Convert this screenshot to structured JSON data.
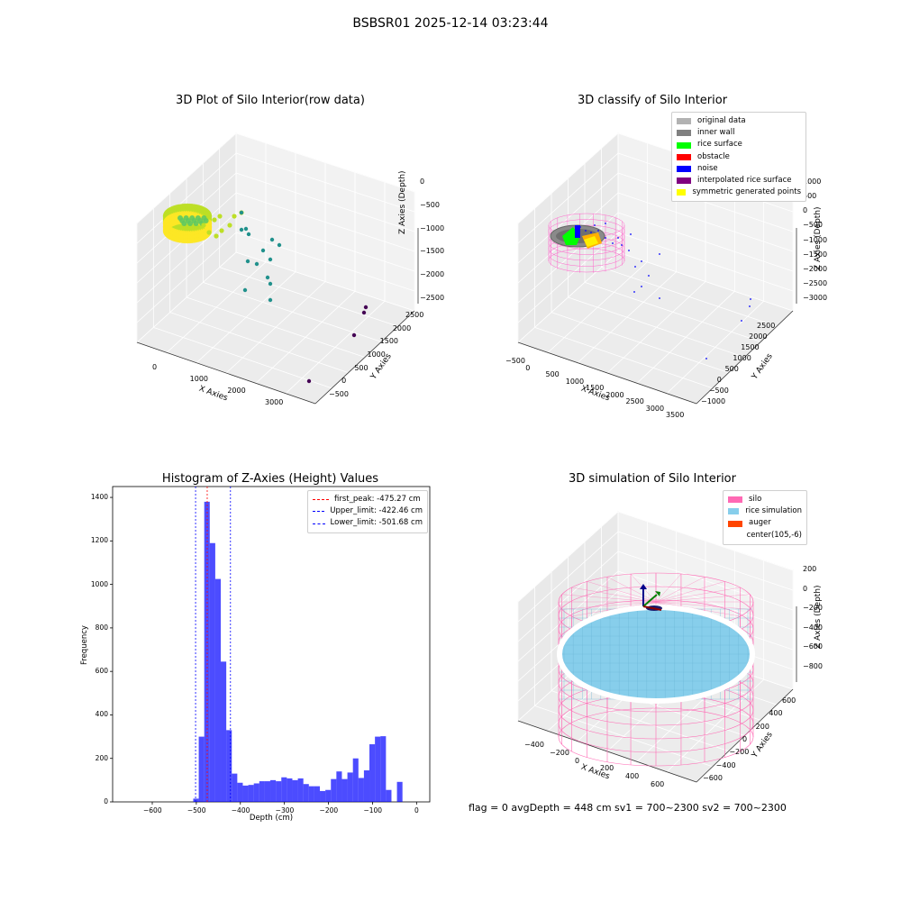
{
  "suptitle": "BSBSR01 2025-12-14 03:23:44",
  "status_text": "flag = 0     avgDepth = 448 cm  sv1 = 700~2300  sv2 = 700~2300",
  "chart_data": [
    {
      "type": "scatter",
      "projection": "3d",
      "title": "3D Plot of Silo Interior(row data)",
      "xlabel": "X Axies",
      "ylabel": "Y Axies",
      "zlabel": "Z Axies (Depth)",
      "x_ticks": [
        "0",
        "1000",
        "2000",
        "3000"
      ],
      "y_ticks": [
        "−500",
        "0",
        "500",
        "1000",
        "1500",
        "2000",
        "2500"
      ],
      "z_ticks": [
        "0",
        "−500",
        "−1000",
        "−1500",
        "−2000",
        "−2500"
      ],
      "colormap": [
        "#440154",
        "#21918c",
        "#5ec962",
        "#bddf26",
        "#fde725"
      ],
      "grid": true
    },
    {
      "type": "scatter",
      "projection": "3d",
      "title": "3D classify of Silo Interior",
      "xlabel": "X Axies",
      "ylabel": "Y Axies",
      "zlabel": "Z Axies (Depth)",
      "x_ticks": [
        "−500",
        "0",
        "500",
        "1000",
        "1500",
        "2000",
        "2500",
        "3000",
        "3500"
      ],
      "y_ticks": [
        "−1000",
        "−500",
        "0",
        "500",
        "1000",
        "1500",
        "2000",
        "2500"
      ],
      "z_ticks": [
        "1000",
        "500",
        "0",
        "−500",
        "−1000",
        "−1500",
        "−2000",
        "−2500",
        "−3000"
      ],
      "legend_position": "top-right",
      "legend": [
        {
          "label": "original data",
          "color": "#b2b2b2"
        },
        {
          "label": "inner wall",
          "color": "#808080"
        },
        {
          "label": "rice surface",
          "color": "#00ff00"
        },
        {
          "label": "obstacle",
          "color": "#ff0000"
        },
        {
          "label": "noise",
          "color": "#0000ff"
        },
        {
          "label": "interpolated rice surface",
          "color": "#800080"
        },
        {
          "label": "symmetric generated points",
          "color": "#ffff00"
        }
      ],
      "grid": true
    },
    {
      "type": "bar",
      "title": "Histogram of Z-Axies (Height) Values",
      "xlabel": "Depth (cm)",
      "ylabel": "Frequency",
      "xlim": [
        -690,
        30
      ],
      "ylim": [
        0,
        1450
      ],
      "x_ticks": [
        -600,
        -500,
        -400,
        -300,
        -200,
        -100,
        0
      ],
      "y_ticks": [
        0,
        200,
        400,
        600,
        800,
        1000,
        1200,
        1400
      ],
      "bin_start": -507,
      "bin_width": 12.5,
      "values": [
        15,
        300,
        1380,
        1190,
        1025,
        645,
        330,
        130,
        88,
        75,
        78,
        85,
        95,
        95,
        100,
        95,
        113,
        108,
        100,
        108,
        82,
        72,
        72,
        50,
        55,
        105,
        140,
        105,
        135,
        200,
        110,
        145,
        265,
        300,
        302,
        55,
        0,
        92
      ],
      "bar_color": "#0000ff",
      "lines": [
        {
          "label": "first_peak: -475.27 cm",
          "x": -475.27,
          "color": "#ff0000"
        },
        {
          "label": "Upper_limit: -422.46 cm",
          "x": -422.46,
          "color": "#0000ff"
        },
        {
          "label": "Lower_limit: -501.68 cm",
          "x": -501.68,
          "color": "#0000ff"
        }
      ],
      "legend_position": "top-right"
    },
    {
      "type": "area",
      "projection": "3d",
      "title": "3D simulation of Silo Interior",
      "xlabel": "X Axies",
      "ylabel": "Y Axies",
      "zlabel": "Z Axies (Depth)",
      "x_ticks": [
        "−400",
        "−200",
        "0",
        "200",
        "400",
        "600"
      ],
      "y_ticks": [
        "−600",
        "−400",
        "−200",
        "0",
        "200",
        "400",
        "600"
      ],
      "z_ticks": [
        "200",
        "0",
        "−200",
        "−400",
        "−600",
        "−800"
      ],
      "legend_position": "top-right",
      "legend": [
        {
          "label": "silo",
          "color": "#ff69b4"
        },
        {
          "label": "rice simulation",
          "color": "#87ceeb"
        },
        {
          "label": "auger",
          "color": "#ff4500"
        },
        {
          "label": "center(105,-6)",
          "color": "#ffffff"
        }
      ],
      "grid": true
    }
  ]
}
